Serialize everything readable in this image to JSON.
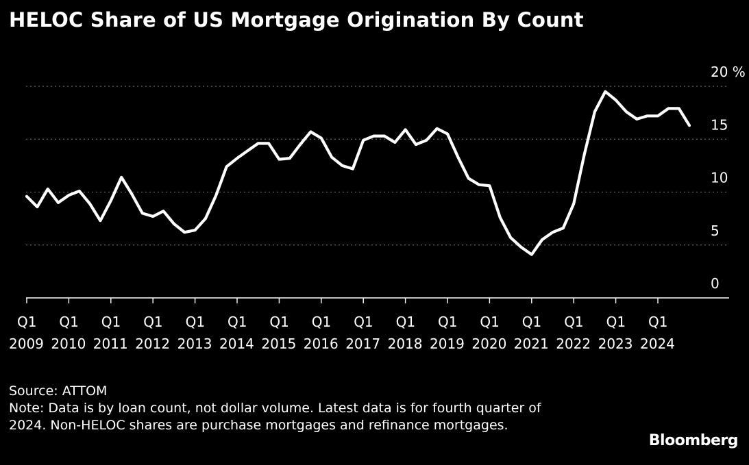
{
  "title": "HELOC Share of US Mortgage Origination By Count",
  "source": "Source: ATTOM",
  "note": "Note: Data is by loan count, not dollar volume. Latest data is for fourth quarter of 2024. Non-HELOC shares are purchase mortgages and refinance mortgages.",
  "brand": "Bloomberg",
  "colors": {
    "background": "#000000",
    "line": "#ffffff",
    "grid": "#666666"
  },
  "chart_data": {
    "type": "line",
    "title": "HELOC Share of US Mortgage Origination By Count",
    "ylabel": "%",
    "ylim": [
      0,
      20
    ],
    "yticks": [
      0,
      5,
      10,
      15,
      20
    ],
    "ytick_labels": [
      "0",
      "5",
      "10",
      "15",
      "20 %"
    ],
    "grid": "horizontal dotted",
    "xtick_labels": [
      {
        "quarter": "Q1",
        "year": "2009"
      },
      {
        "quarter": "Q1",
        "year": "2010"
      },
      {
        "quarter": "Q1",
        "year": "2011"
      },
      {
        "quarter": "Q1",
        "year": "2012"
      },
      {
        "quarter": "Q1",
        "year": "2013"
      },
      {
        "quarter": "Q1",
        "year": "2014"
      },
      {
        "quarter": "Q1",
        "year": "2015"
      },
      {
        "quarter": "Q1",
        "year": "2016"
      },
      {
        "quarter": "Q1",
        "year": "2017"
      },
      {
        "quarter": "Q1",
        "year": "2018"
      },
      {
        "quarter": "Q1",
        "year": "2019"
      },
      {
        "quarter": "Q1",
        "year": "2020"
      },
      {
        "quarter": "Q1",
        "year": "2021"
      },
      {
        "quarter": "Q1",
        "year": "2022"
      },
      {
        "quarter": "Q1",
        "year": "2023"
      },
      {
        "quarter": "Q1",
        "year": "2024"
      }
    ],
    "x": [
      "2009 Q1",
      "2009 Q2",
      "2009 Q3",
      "2009 Q4",
      "2010 Q1",
      "2010 Q2",
      "2010 Q3",
      "2010 Q4",
      "2011 Q1",
      "2011 Q2",
      "2011 Q3",
      "2011 Q4",
      "2012 Q1",
      "2012 Q2",
      "2012 Q3",
      "2012 Q4",
      "2013 Q1",
      "2013 Q2",
      "2013 Q3",
      "2013 Q4",
      "2014 Q1",
      "2014 Q2",
      "2014 Q3",
      "2014 Q4",
      "2015 Q1",
      "2015 Q2",
      "2015 Q3",
      "2015 Q4",
      "2016 Q1",
      "2016 Q2",
      "2016 Q3",
      "2016 Q4",
      "2017 Q1",
      "2017 Q2",
      "2017 Q3",
      "2017 Q4",
      "2018 Q1",
      "2018 Q2",
      "2018 Q3",
      "2018 Q4",
      "2019 Q1",
      "2019 Q2",
      "2019 Q3",
      "2019 Q4",
      "2020 Q1",
      "2020 Q2",
      "2020 Q3",
      "2020 Q4",
      "2021 Q1",
      "2021 Q2",
      "2021 Q3",
      "2021 Q4",
      "2022 Q1",
      "2022 Q2",
      "2022 Q3",
      "2022 Q4",
      "2023 Q1",
      "2023 Q2",
      "2023 Q3",
      "2023 Q4",
      "2024 Q1",
      "2024 Q2",
      "2024 Q3",
      "2024 Q4"
    ],
    "values": [
      9.6,
      8.6,
      10.3,
      9.0,
      9.7,
      10.1,
      8.9,
      7.3,
      9.2,
      11.4,
      9.8,
      8.0,
      7.7,
      8.2,
      7.0,
      6.2,
      6.4,
      7.5,
      9.7,
      12.4,
      13.2,
      13.9,
      14.6,
      14.6,
      13.1,
      13.2,
      14.5,
      15.7,
      15.1,
      13.3,
      12.5,
      12.2,
      14.9,
      15.3,
      15.3,
      14.7,
      15.9,
      14.5,
      14.9,
      16.0,
      15.5,
      13.3,
      11.3,
      10.7,
      10.6,
      7.6,
      5.7,
      4.8,
      4.1,
      5.5,
      6.2,
      6.6,
      8.9,
      13.5,
      17.6,
      19.5,
      18.7,
      17.6,
      16.9,
      17.2,
      17.2,
      17.9,
      17.9,
      16.3
    ]
  }
}
